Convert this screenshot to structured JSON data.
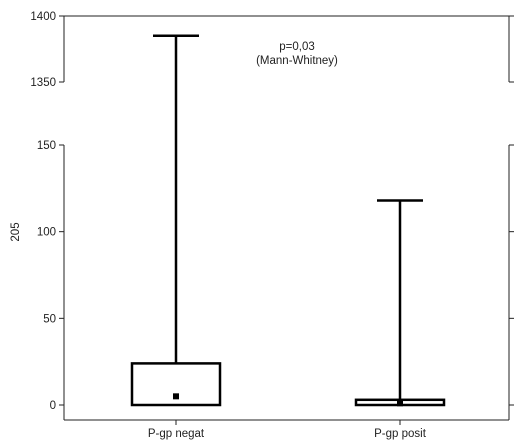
{
  "chart_data": {
    "type": "boxplot",
    "title": "",
    "xlabel": "",
    "ylabel": "205",
    "annotation": {
      "line1": "p=0,03",
      "line2": "(Mann-Whitney)"
    },
    "broken_axis": true,
    "y_segments": [
      {
        "range": [
          0,
          150
        ],
        "ticks": [
          0,
          50,
          100,
          150
        ]
      },
      {
        "range": [
          1350,
          1400
        ],
        "ticks": [
          1350,
          1400
        ]
      }
    ],
    "categories": [
      "P-gp negat",
      "P-gp posit"
    ],
    "boxes": [
      {
        "category": "P-gp negat",
        "min": 0,
        "q1": 0,
        "median": 5,
        "q3": 24,
        "max": 1385
      },
      {
        "category": "P-gp posit",
        "min": 0,
        "q1": 0,
        "median": 1,
        "q3": 3,
        "max": 118
      }
    ],
    "grid": false,
    "colors": {
      "line": "#000000",
      "axis": "#222222"
    }
  }
}
